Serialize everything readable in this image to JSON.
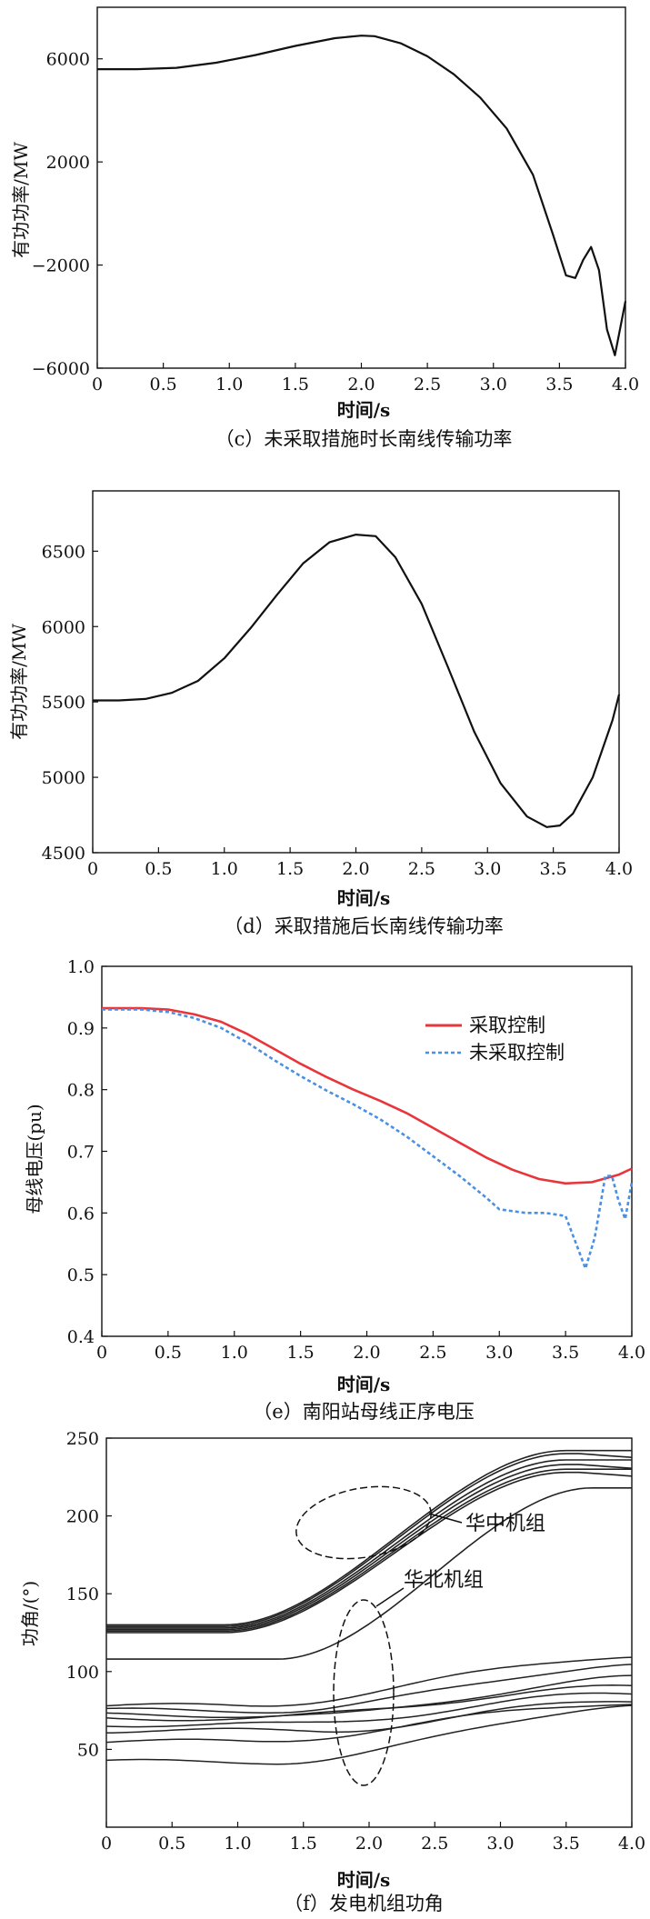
{
  "chart_data": [
    {
      "id": "c",
      "type": "line",
      "caption": "（c）未采取措施时长南线传输功率",
      "xlabel": "时间/s",
      "ylabel": "有功功率/MW",
      "xlim": [
        0,
        4.0
      ],
      "ylim": [
        -6000,
        8000
      ],
      "xticks": [
        "0",
        "0.5",
        "1.0",
        "1.5",
        "2.0",
        "2.5",
        "3.0",
        "3.5",
        "4.0"
      ],
      "yticks": [
        {
          "v": 6000,
          "label": "6000"
        },
        {
          "v": 2000,
          "label": "2000"
        },
        {
          "v": -2000,
          "label": "−2000"
        },
        {
          "v": -6000,
          "label": "−6000"
        }
      ],
      "series": [
        {
          "name": "长南线",
          "color": "#111111",
          "dash": "",
          "x": [
            0,
            0.3,
            0.6,
            0.9,
            1.2,
            1.5,
            1.8,
            2.0,
            2.1,
            2.3,
            2.5,
            2.7,
            2.9,
            3.1,
            3.3,
            3.45,
            3.55,
            3.62,
            3.68,
            3.74,
            3.8,
            3.86,
            3.92,
            3.97,
            4.0
          ],
          "y": [
            5600,
            5600,
            5650,
            5850,
            6150,
            6500,
            6800,
            6900,
            6880,
            6600,
            6100,
            5400,
            4500,
            3300,
            1500,
            -800,
            -2400,
            -2500,
            -1800,
            -1300,
            -2200,
            -4500,
            -5500,
            -4200,
            -3400
          ]
        }
      ]
    },
    {
      "id": "d",
      "type": "line",
      "caption": "（d）采取措施后长南线传输功率",
      "xlabel": "时间/s",
      "ylabel": "有功功率/MW",
      "xlim": [
        0,
        4.0
      ],
      "ylim": [
        4500,
        6900
      ],
      "xticks": [
        "0",
        "0.5",
        "1.0",
        "1.5",
        "2.0",
        "2.5",
        "3.0",
        "3.5",
        "4.0"
      ],
      "yticks": [
        {
          "v": 6500,
          "label": "6500"
        },
        {
          "v": 6000,
          "label": "6000"
        },
        {
          "v": 5500,
          "label": "5500"
        },
        {
          "v": 5000,
          "label": "5000"
        },
        {
          "v": 4500,
          "label": "4500"
        }
      ],
      "series": [
        {
          "name": "长南线",
          "color": "#111111",
          "dash": "",
          "x": [
            0,
            0.2,
            0.4,
            0.6,
            0.8,
            1.0,
            1.2,
            1.4,
            1.6,
            1.8,
            2.0,
            2.15,
            2.3,
            2.5,
            2.7,
            2.9,
            3.1,
            3.3,
            3.45,
            3.55,
            3.65,
            3.8,
            3.95,
            4.0
          ],
          "y": [
            5510,
            5510,
            5520,
            5560,
            5640,
            5790,
            5990,
            6210,
            6420,
            6560,
            6610,
            6600,
            6460,
            6150,
            5730,
            5300,
            4960,
            4740,
            4670,
            4680,
            4760,
            5000,
            5380,
            5550
          ]
        }
      ]
    },
    {
      "id": "e",
      "type": "line",
      "caption": "（e）南阳站母线正序电压",
      "xlabel": "时间/s",
      "ylabel": "母线电压(pu)",
      "xlim": [
        0,
        4.0
      ],
      "ylim": [
        0.4,
        1.0
      ],
      "xticks": [
        "0",
        "0.5",
        "1.0",
        "1.5",
        "2.0",
        "2.5",
        "3.0",
        "3.5",
        "4.0"
      ],
      "yticks": [
        {
          "v": 1.0,
          "label": "1.0"
        },
        {
          "v": 0.9,
          "label": "0.9"
        },
        {
          "v": 0.8,
          "label": "0.8"
        },
        {
          "v": 0.7,
          "label": "0.7"
        },
        {
          "v": 0.6,
          "label": "0.6"
        },
        {
          "v": 0.5,
          "label": "0.5"
        },
        {
          "v": 0.4,
          "label": "0.4"
        }
      ],
      "legend": "top-right",
      "series": [
        {
          "name": "采取控制",
          "color": "#e8353b",
          "dash": "",
          "x": [
            0,
            0.3,
            0.5,
            0.7,
            0.9,
            1.1,
            1.3,
            1.5,
            1.7,
            1.9,
            2.1,
            2.3,
            2.5,
            2.7,
            2.9,
            3.1,
            3.3,
            3.5,
            3.7,
            3.9,
            4.0
          ],
          "y": [
            0.932,
            0.932,
            0.93,
            0.922,
            0.91,
            0.89,
            0.866,
            0.842,
            0.82,
            0.8,
            0.782,
            0.762,
            0.738,
            0.714,
            0.69,
            0.67,
            0.655,
            0.648,
            0.65,
            0.662,
            0.672
          ]
        },
        {
          "name": "未采取控制",
          "color": "#4a90e2",
          "dash": "4,3",
          "x": [
            0,
            0.3,
            0.5,
            0.7,
            0.9,
            1.1,
            1.3,
            1.5,
            1.7,
            1.9,
            2.1,
            2.3,
            2.5,
            2.7,
            2.9,
            3.0,
            3.2,
            3.35,
            3.5,
            3.58,
            3.65,
            3.72,
            3.8,
            3.85,
            3.9,
            3.95,
            4.0
          ],
          "y": [
            0.93,
            0.93,
            0.926,
            0.916,
            0.9,
            0.876,
            0.848,
            0.822,
            0.798,
            0.776,
            0.752,
            0.724,
            0.692,
            0.66,
            0.625,
            0.606,
            0.6,
            0.6,
            0.595,
            0.55,
            0.51,
            0.56,
            0.66,
            0.66,
            0.62,
            0.59,
            0.65
          ]
        }
      ]
    },
    {
      "id": "f",
      "type": "line",
      "caption": "（f）发电机组功角",
      "xlabel": "时间/s",
      "ylabel": "功角/(°)",
      "xlim": [
        0,
        4.0
      ],
      "ylim": [
        0,
        250
      ],
      "xticks": [
        "0",
        "0.5",
        "1.0",
        "1.5",
        "2.0",
        "2.5",
        "3.0",
        "3.5",
        "4.0"
      ],
      "yticks": [
        {
          "v": 250,
          "label": "250"
        },
        {
          "v": 200,
          "label": "200"
        },
        {
          "v": 150,
          "label": "150"
        },
        {
          "v": 100,
          "label": "100"
        },
        {
          "v": 50,
          "label": "50"
        }
      ],
      "annotations": [
        "华中机组",
        "华北机组"
      ],
      "central_group": [
        {
          "start": 130,
          "end": 242
        },
        {
          "start": 129,
          "end": 240
        },
        {
          "start": 128,
          "end": 236
        },
        {
          "start": 127,
          "end": 233
        },
        {
          "start": 126,
          "end": 230
        },
        {
          "start": 125,
          "end": 228
        }
      ],
      "central_lagging": {
        "start": 108,
        "end": 218
      },
      "north_group": [
        {
          "start": 78,
          "end": 110
        },
        {
          "start": 75,
          "end": 104
        },
        {
          "start": 72,
          "end": 96
        },
        {
          "start": 70,
          "end": 90
        },
        {
          "start": 66,
          "end": 86
        },
        {
          "start": 62,
          "end": 82
        },
        {
          "start": 55,
          "end": 80
        },
        {
          "start": 42,
          "end": 78
        }
      ]
    }
  ]
}
